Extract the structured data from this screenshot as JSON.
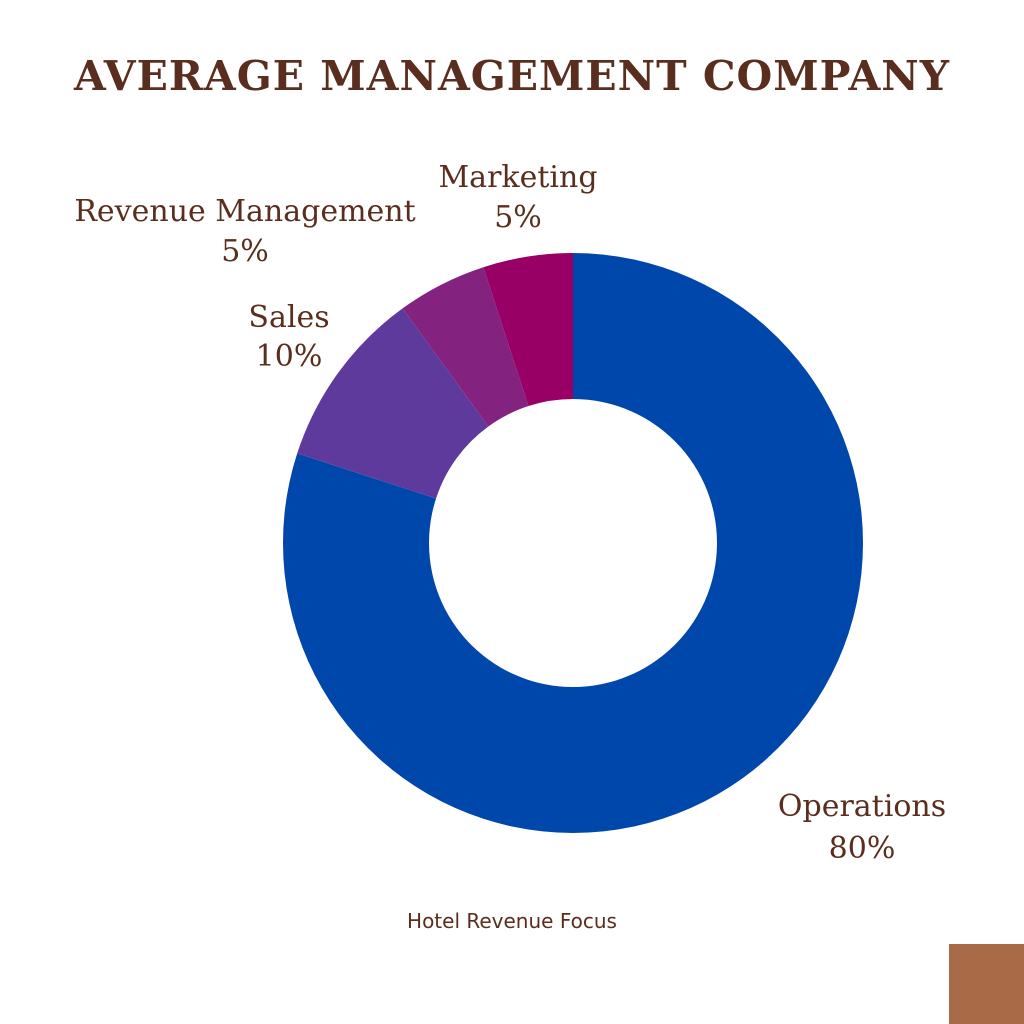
{
  "chart_data": {
    "type": "pie",
    "title": "AVERAGE MANAGEMENT COMPANY",
    "donut": true,
    "slices": [
      {
        "name": "Operations",
        "value": 80,
        "value_label": "80%",
        "color": "#0047ab"
      },
      {
        "name": "Sales",
        "value": 10,
        "value_label": "10%",
        "color": "#5d3a9b"
      },
      {
        "name": "Revenue Management",
        "value": 5,
        "value_label": "5%",
        "color": "#84237f"
      },
      {
        "name": "Marketing",
        "value": 5,
        "value_label": "5%",
        "color": "#990066"
      }
    ]
  },
  "footer": {
    "credit": "Hotel Revenue Focus"
  },
  "colors": {
    "text": "#5a2e1e",
    "corner_accent": "#a86a47",
    "background": "#ffffff"
  }
}
